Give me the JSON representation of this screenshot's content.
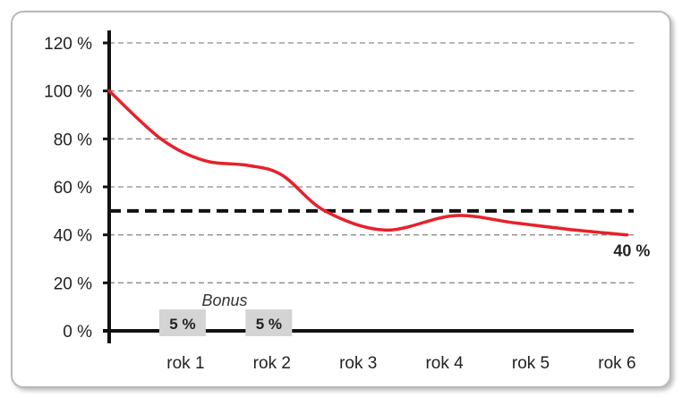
{
  "chart_data": {
    "type": "line",
    "y_ticks": [
      "0 %",
      "20 %",
      "40 %",
      "60 %",
      "80 %",
      "100 %",
      "120 %"
    ],
    "y_tick_values": [
      0,
      20,
      40,
      60,
      80,
      100,
      120
    ],
    "ylim": [
      0,
      120
    ],
    "x_ticks": [
      "rok 1",
      "rok 2",
      "rok 3",
      "rok 4",
      "rok 5",
      "rok 6"
    ],
    "x_tick_values": [
      1,
      2,
      3,
      4,
      5,
      6
    ],
    "xlim": [
      0,
      6
    ],
    "grid": "horizontal dashed",
    "series": [
      {
        "color": "#e8202a",
        "points": [
          {
            "x": 0,
            "y": 100
          },
          {
            "x": 0.6,
            "y": 80
          },
          {
            "x": 1.1,
            "y": 71
          },
          {
            "x": 1.6,
            "y": 69
          },
          {
            "x": 2.0,
            "y": 65
          },
          {
            "x": 2.5,
            "y": 50
          },
          {
            "x": 3.2,
            "y": 42
          },
          {
            "x": 4.0,
            "y": 48
          },
          {
            "x": 4.7,
            "y": 45
          },
          {
            "x": 5.4,
            "y": 42
          },
          {
            "x": 6.0,
            "y": 40
          }
        ]
      }
    ],
    "threshold": {
      "y": 50,
      "color": "#111111",
      "style": "dashed"
    },
    "end_label": "40 %",
    "bonus": {
      "label": "Bonus",
      "badges": [
        {
          "x": 0.85,
          "label": "5 %"
        },
        {
          "x": 1.85,
          "label": "5 %"
        }
      ]
    }
  }
}
